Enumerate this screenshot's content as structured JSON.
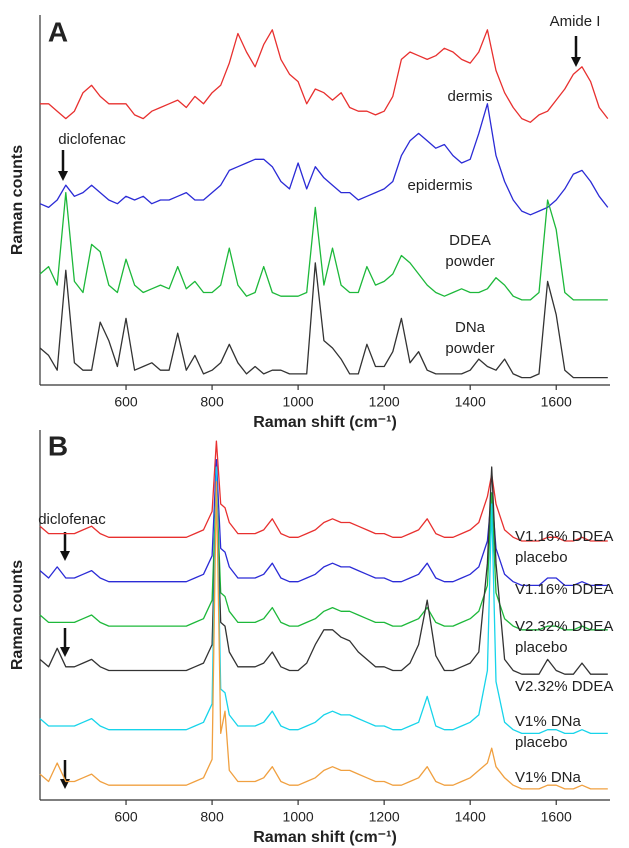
{
  "chart_data": [
    {
      "type": "line",
      "panel": "A",
      "xlabel": "Raman shift (cm⁻¹)",
      "ylabel": "Raman counts",
      "annotations": [
        "Amide I",
        "diclofenac"
      ],
      "xlim": [
        400,
        1725
      ],
      "xticks": [
        600,
        800,
        1000,
        1200,
        1400,
        1600
      ],
      "ylim": [
        0,
        100
      ],
      "x": [
        400,
        420,
        440,
        460,
        480,
        500,
        520,
        540,
        560,
        580,
        600,
        620,
        640,
        660,
        680,
        700,
        720,
        740,
        760,
        780,
        800,
        820,
        840,
        860,
        880,
        900,
        920,
        940,
        960,
        980,
        1000,
        1020,
        1040,
        1060,
        1080,
        1100,
        1120,
        1140,
        1160,
        1180,
        1200,
        1220,
        1240,
        1260,
        1280,
        1300,
        1320,
        1340,
        1360,
        1380,
        1400,
        1420,
        1440,
        1460,
        1480,
        1500,
        1520,
        1540,
        1560,
        1580,
        1600,
        1620,
        1640,
        1660,
        1680,
        1700,
        1720
      ],
      "series": [
        {
          "name": "dermis",
          "color": "#e8302f",
          "values": [
            76,
            76,
            74,
            72,
            74,
            79,
            81,
            78,
            76,
            76,
            76,
            73,
            72,
            74,
            75,
            76,
            77,
            75,
            78,
            76,
            79,
            81,
            87,
            95,
            90,
            86,
            92,
            96,
            88,
            84,
            82,
            76,
            80,
            79,
            77,
            79,
            75,
            74,
            74,
            73,
            74,
            78,
            88,
            90,
            89,
            88,
            89,
            91,
            90,
            88,
            87,
            90,
            96,
            85,
            79,
            75,
            72,
            71,
            73,
            74,
            77,
            80,
            84,
            86,
            82,
            75,
            72
          ]
        },
        {
          "name": "epidermis",
          "color": "#2b2bd6",
          "values": [
            49,
            48,
            50,
            54,
            51,
            52,
            54,
            52,
            50,
            49,
            51,
            50,
            51,
            49,
            50,
            50,
            51,
            52,
            50,
            50,
            52,
            54,
            58,
            59,
            60,
            61,
            61,
            59,
            55,
            53,
            60,
            53,
            59,
            56,
            54,
            52,
            52,
            50,
            51,
            52,
            53,
            55,
            62,
            66,
            68,
            66,
            64,
            65,
            62,
            60,
            61,
            68,
            76,
            62,
            55,
            50,
            47,
            46,
            47,
            48,
            50,
            53,
            57,
            58,
            55,
            51,
            48
          ]
        },
        {
          "name": "DDEA powder",
          "color": "#1db83a",
          "values": [
            30,
            32,
            27,
            52,
            28,
            25,
            38,
            36,
            27,
            25,
            34,
            27,
            25,
            26,
            27,
            26,
            32,
            26,
            28,
            25,
            25,
            27,
            37,
            27,
            24,
            25,
            32,
            25,
            24,
            24,
            24,
            25,
            48,
            27,
            37,
            27,
            25,
            25,
            32,
            27,
            28,
            30,
            35,
            33,
            30,
            27,
            25,
            24,
            25,
            26,
            25,
            25,
            26,
            29,
            27,
            24,
            23,
            23,
            25,
            50,
            42,
            25,
            23,
            23,
            23,
            23,
            23
          ]
        },
        {
          "name": "DNa powder",
          "color": "#333333",
          "values": [
            10,
            8,
            4,
            31,
            6,
            4,
            4,
            17,
            12,
            5,
            18,
            4,
            5,
            6,
            4,
            4,
            14,
            4,
            8,
            3,
            4,
            6,
            11,
            6,
            3,
            5,
            3,
            4,
            4,
            3,
            3,
            3,
            33,
            12,
            10,
            7,
            3,
            3,
            11,
            5,
            5,
            9,
            18,
            6,
            9,
            4,
            3,
            3,
            3,
            3,
            4,
            7,
            5,
            4,
            7,
            3,
            2,
            2,
            3,
            28,
            19,
            4,
            2,
            2,
            2,
            2,
            2
          ]
        }
      ]
    },
    {
      "type": "line",
      "panel": "B",
      "xlabel": "Raman shift (cm⁻¹)",
      "ylabel": "Raman counts",
      "annotations": [
        "diclofenac"
      ],
      "xlim": [
        400,
        1725
      ],
      "xticks": [
        600,
        800,
        1000,
        1200,
        1400,
        1600
      ],
      "ylim": [
        0,
        100
      ],
      "x": [
        400,
        420,
        440,
        460,
        480,
        500,
        520,
        540,
        560,
        580,
        600,
        620,
        640,
        660,
        680,
        700,
        720,
        740,
        760,
        780,
        800,
        810,
        820,
        830,
        840,
        860,
        880,
        900,
        920,
        940,
        960,
        980,
        1000,
        1020,
        1040,
        1060,
        1080,
        1100,
        1120,
        1140,
        1160,
        1180,
        1200,
        1220,
        1240,
        1260,
        1280,
        1300,
        1320,
        1340,
        1360,
        1380,
        1400,
        1420,
        1440,
        1450,
        1460,
        1480,
        1500,
        1520,
        1540,
        1560,
        1580,
        1600,
        1620,
        1640,
        1660,
        1680,
        1700,
        1720
      ],
      "series": [
        {
          "name": "V1.16% DDEA placebo",
          "color": "#e8302f",
          "values": [
            74,
            72,
            72,
            72,
            72,
            73,
            74,
            72,
            71,
            71,
            71,
            71,
            71,
            71,
            71,
            71,
            71,
            71,
            72,
            73,
            78,
            97,
            80,
            79,
            75,
            72,
            72,
            72,
            73,
            76,
            72,
            71,
            71,
            72,
            73,
            75,
            76,
            75,
            75,
            74,
            73,
            72,
            72,
            71,
            71,
            72,
            73,
            76,
            72,
            71,
            71,
            72,
            73,
            75,
            82,
            88,
            80,
            73,
            71,
            70,
            70,
            70,
            71,
            71,
            70,
            70,
            71,
            70,
            70,
            70
          ]
        },
        {
          "name": "V1.16% DDEA",
          "color": "#2b2bd6",
          "values": [
            62,
            60,
            63,
            60,
            60,
            61,
            62,
            60,
            59,
            59,
            59,
            59,
            59,
            59,
            59,
            59,
            59,
            59,
            60,
            61,
            66,
            92,
            68,
            67,
            63,
            60,
            60,
            60,
            61,
            64,
            60,
            59,
            59,
            60,
            61,
            63,
            64,
            63,
            63,
            62,
            61,
            60,
            60,
            59,
            59,
            60,
            61,
            64,
            60,
            59,
            59,
            60,
            61,
            63,
            70,
            83,
            68,
            61,
            59,
            58,
            58,
            58,
            60,
            60,
            58,
            58,
            59,
            58,
            58,
            58
          ]
        },
        {
          "name": "V2.32% DDEA placebo",
          "color": "#1db83a",
          "values": [
            50,
            48,
            48,
            48,
            48,
            49,
            50,
            48,
            47,
            47,
            47,
            47,
            47,
            47,
            47,
            47,
            47,
            47,
            48,
            49,
            54,
            86,
            56,
            55,
            51,
            48,
            48,
            48,
            49,
            52,
            48,
            47,
            47,
            48,
            49,
            51,
            52,
            51,
            51,
            50,
            49,
            48,
            48,
            47,
            47,
            48,
            49,
            52,
            48,
            47,
            47,
            48,
            49,
            51,
            58,
            83,
            56,
            49,
            47,
            46,
            46,
            46,
            47,
            47,
            46,
            46,
            47,
            46,
            46,
            46
          ]
        },
        {
          "name": "V2.32% DDEA",
          "color": "#333333",
          "values": [
            38,
            36,
            41,
            36,
            36,
            37,
            38,
            36,
            35,
            35,
            35,
            35,
            35,
            35,
            35,
            35,
            35,
            35,
            36,
            37,
            42,
            84,
            48,
            47,
            40,
            36,
            36,
            36,
            37,
            40,
            36,
            35,
            35,
            37,
            42,
            46,
            46,
            44,
            43,
            40,
            38,
            36,
            36,
            35,
            35,
            37,
            42,
            54,
            39,
            35,
            35,
            36,
            37,
            40,
            64,
            90,
            64,
            38,
            35,
            34,
            34,
            34,
            38,
            35,
            34,
            34,
            37,
            34,
            34,
            34
          ]
        },
        {
          "name": "V1% DNa placebo",
          "color": "#17d4ea",
          "values": [
            22,
            20,
            20,
            20,
            20,
            21,
            22,
            20,
            19,
            19,
            19,
            19,
            19,
            19,
            19,
            19,
            19,
            19,
            20,
            21,
            26,
            90,
            30,
            29,
            23,
            20,
            20,
            20,
            21,
            24,
            20,
            19,
            19,
            20,
            21,
            23,
            24,
            23,
            23,
            22,
            21,
            20,
            20,
            19,
            19,
            20,
            21,
            28,
            20,
            19,
            19,
            20,
            21,
            23,
            35,
            80,
            32,
            21,
            19,
            18,
            18,
            18,
            19,
            19,
            18,
            18,
            19,
            18,
            18,
            18
          ]
        },
        {
          "name": "V1% DNa",
          "color": "#f0a040",
          "values": [
            7,
            5,
            10,
            5,
            5,
            6,
            7,
            5,
            4,
            4,
            4,
            4,
            4,
            4,
            4,
            4,
            4,
            4,
            5,
            6,
            11,
            86,
            18,
            24,
            8,
            5,
            5,
            5,
            6,
            9,
            5,
            4,
            4,
            5,
            6,
            8,
            9,
            8,
            8,
            7,
            6,
            5,
            5,
            4,
            4,
            5,
            6,
            9,
            5,
            4,
            4,
            5,
            6,
            8,
            10,
            14,
            9,
            6,
            4,
            3,
            3,
            3,
            4,
            4,
            3,
            3,
            4,
            3,
            3,
            3
          ]
        }
      ]
    }
  ]
}
